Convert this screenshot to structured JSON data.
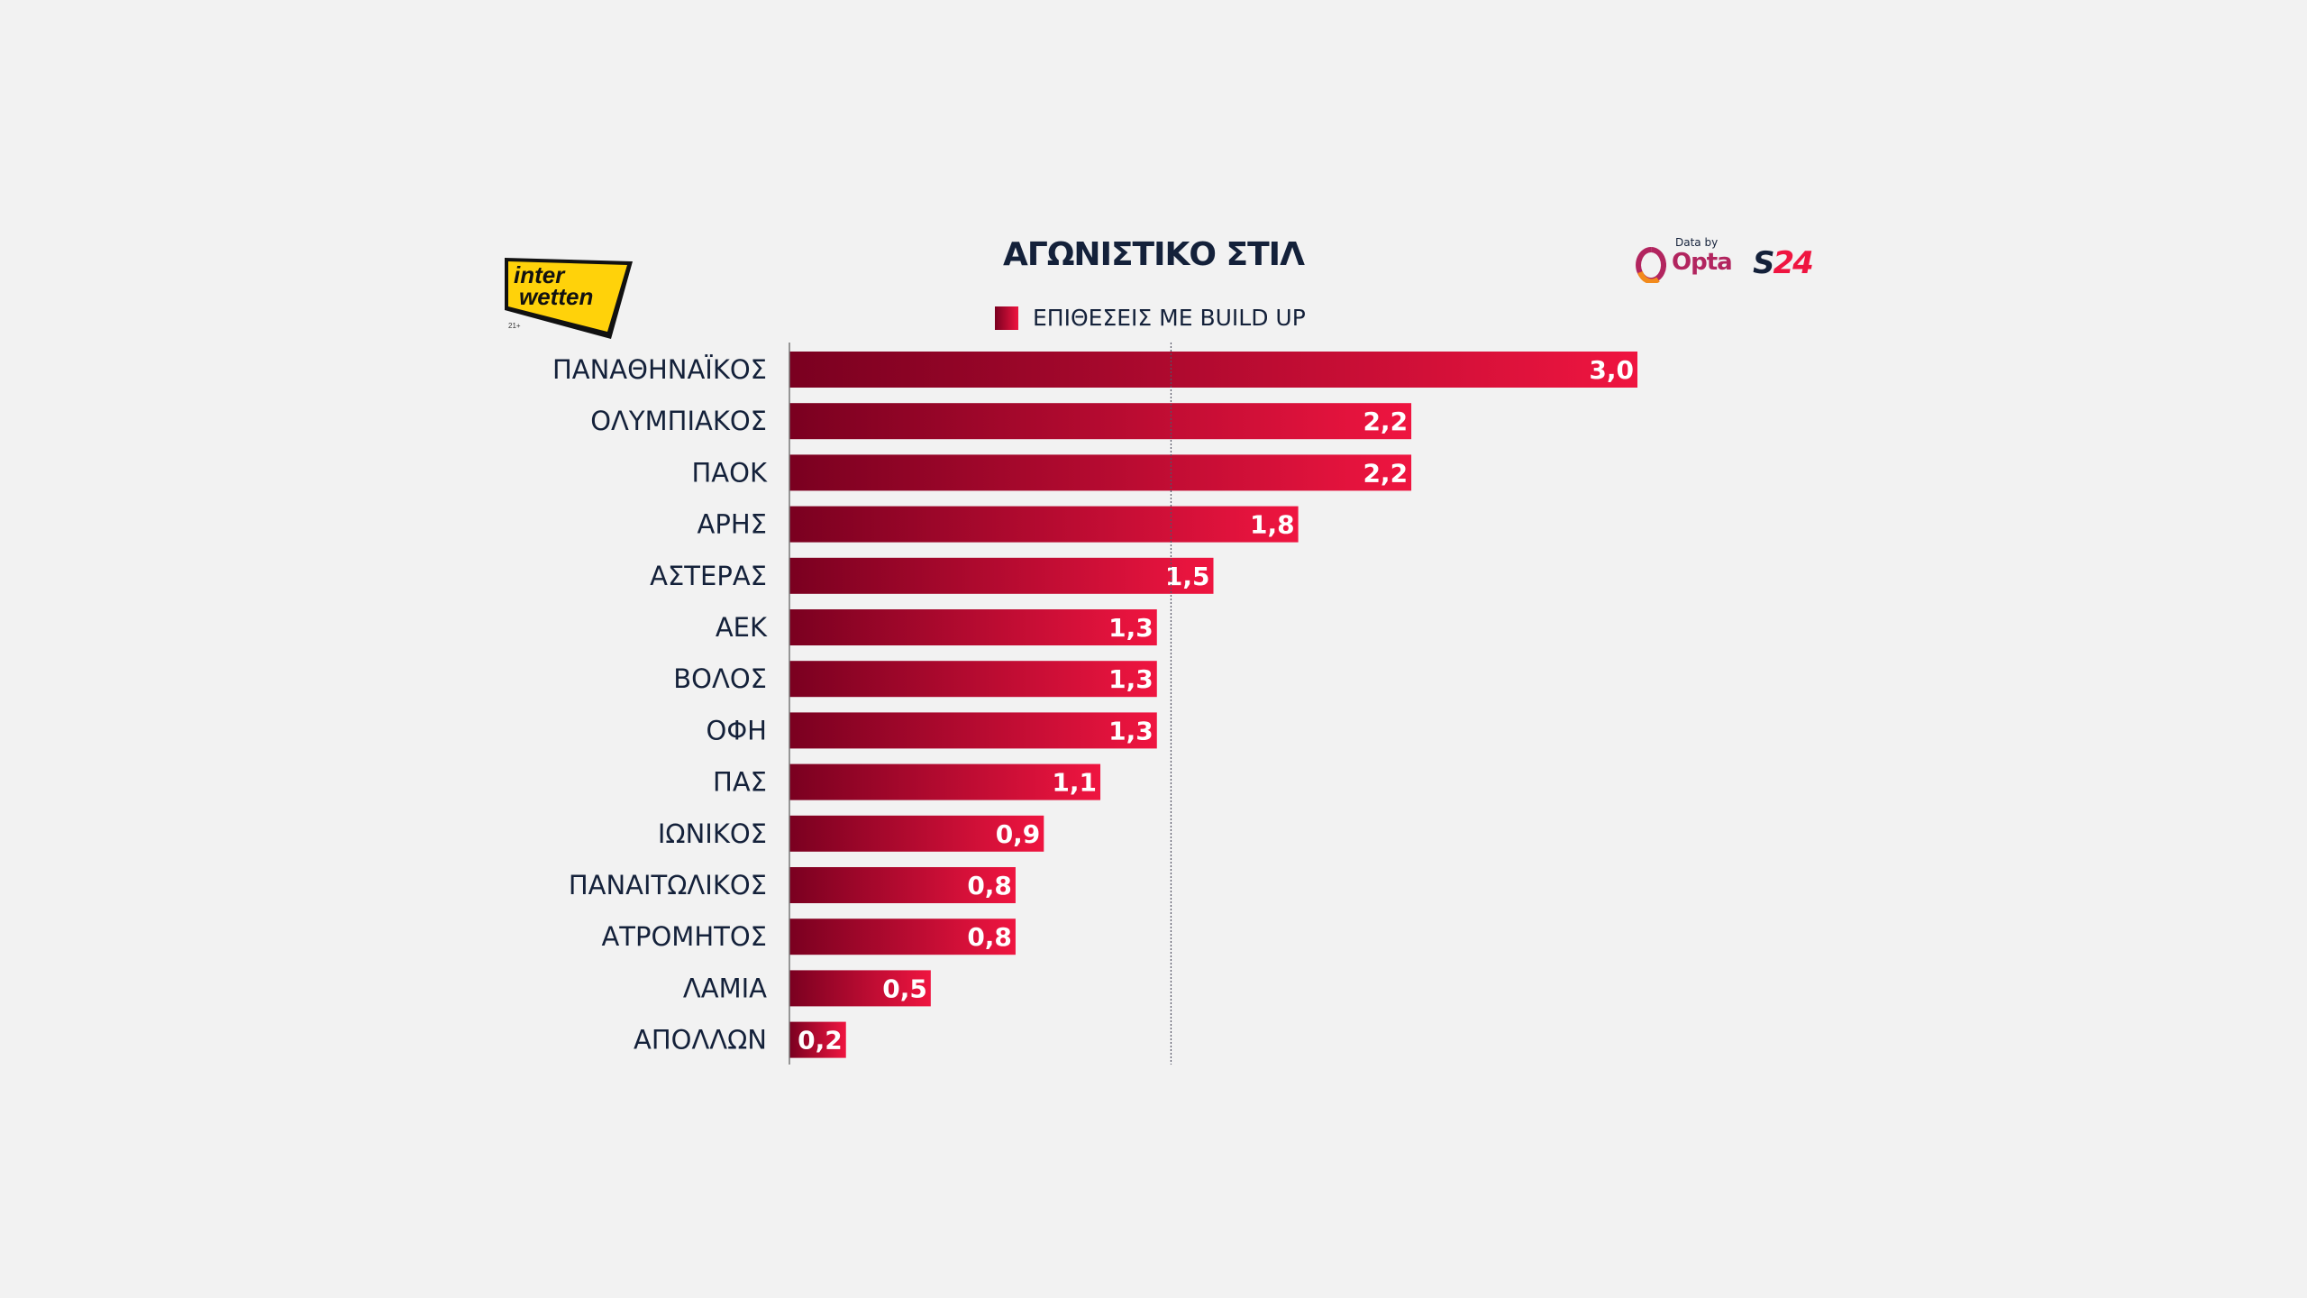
{
  "chart_data": {
    "type": "bar",
    "orientation": "horizontal",
    "title": "ΑΓΩΝΙΣΤΙΚΟ ΣΤΙΛ",
    "legend": [
      "ΕΠΙΘΕΣΕΙΣ ΜΕ BUILD UP"
    ],
    "legend_placement": "top-center",
    "categories": [
      "ΠΑΝΑΘΗΝΑΪΚΟΣ",
      "ΟΛΥΜΠΙΑΚΟΣ",
      "ΠΑΟΚ",
      "ΑΡΗΣ",
      "ΑΣΤΕΡΑΣ",
      "ΑΕΚ",
      "ΒΟΛΟΣ",
      "ΟΦΗ",
      "ΠΑΣ",
      "ΙΩΝΙΚΟΣ",
      "ΠΑΝΑΙΤΩΛΙΚΟΣ",
      "ΑΤΡΟΜΗΤΟΣ",
      "ΛΑΜΙΑ",
      "ΑΠΟΛΛΩΝ"
    ],
    "values": [
      3.0,
      2.2,
      2.2,
      1.8,
      1.5,
      1.3,
      1.3,
      1.3,
      1.1,
      0.9,
      0.8,
      0.8,
      0.5,
      0.2
    ],
    "value_labels": [
      "3,0",
      "2,2",
      "2,2",
      "1,8",
      "1,5",
      "1,3",
      "1,3",
      "1,3",
      "1,1",
      "0,9",
      "0,8",
      "0,8",
      "0,5",
      "0,2"
    ],
    "reference_line": 1.35,
    "xlim": [
      0,
      3.0
    ],
    "colors": {
      "bar_start": "#7a0020",
      "bar_end": "#ef1540"
    }
  },
  "logos": {
    "sponsor": "interwetten",
    "sponsor_age": "21+",
    "data_by": "Data by",
    "opta": "Opta",
    "s24": "S24"
  }
}
